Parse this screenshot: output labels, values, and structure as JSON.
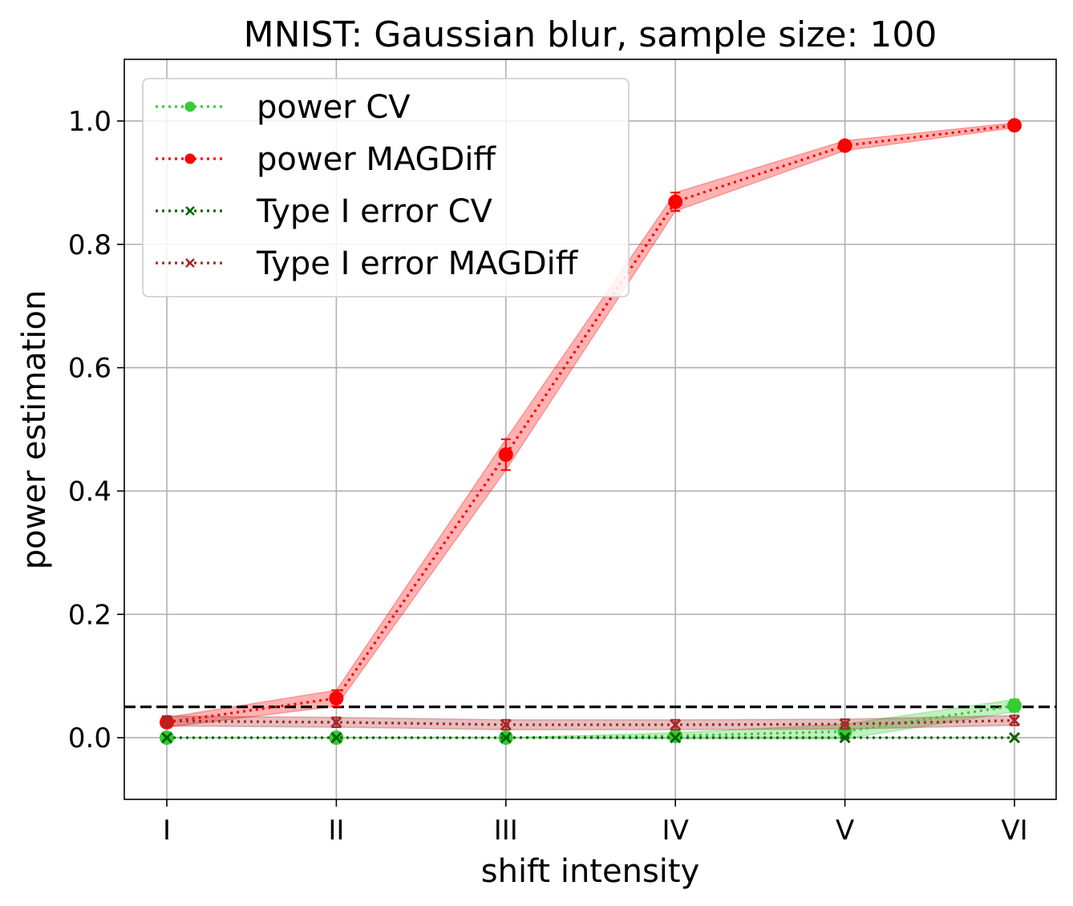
{
  "chart_data": {
    "type": "line",
    "title": "MNIST: Gaussian blur, sample size: 100",
    "xlabel": "shift intensity",
    "ylabel": "power estimation",
    "categories": [
      "I",
      "II",
      "III",
      "IV",
      "V",
      "VI"
    ],
    "ylim": [
      -0.1,
      1.1
    ],
    "yticks": [
      0.0,
      0.2,
      0.4,
      0.6,
      0.8,
      1.0
    ],
    "ytick_labels": [
      "0.0",
      "0.2",
      "0.4",
      "0.6",
      "0.8",
      "1.0"
    ],
    "grid": true,
    "legend_position": "top-left",
    "reference_line": 0.05,
    "series": [
      {
        "name": "power CV",
        "color": "#33cc33",
        "marker": "circle",
        "values": [
          0.0,
          0.0,
          0.0,
          0.003,
          0.01,
          0.052
        ],
        "band": [
          0.0,
          0.0,
          0.0,
          0.005,
          0.012,
          0.01
        ]
      },
      {
        "name": "power MAGDiff",
        "color": "#ff0000",
        "marker": "circle",
        "values": [
          0.025,
          0.064,
          0.459,
          0.869,
          0.96,
          0.993
        ],
        "band": [
          0.008,
          0.013,
          0.025,
          0.015,
          0.008,
          0.004
        ]
      },
      {
        "name": "Type I error CV",
        "color": "#006400",
        "marker": "x",
        "values": [
          0.0,
          0.0,
          0.0,
          0.0,
          0.0,
          0.0
        ],
        "band": [
          0.0,
          0.0,
          0.0,
          0.0,
          0.0,
          0.0
        ]
      },
      {
        "name": "Type I error MAGDiff",
        "color": "#a52a2a",
        "marker": "x",
        "values": [
          0.027,
          0.025,
          0.021,
          0.021,
          0.022,
          0.028
        ],
        "band": [
          0.008,
          0.008,
          0.008,
          0.008,
          0.008,
          0.008
        ]
      }
    ]
  }
}
